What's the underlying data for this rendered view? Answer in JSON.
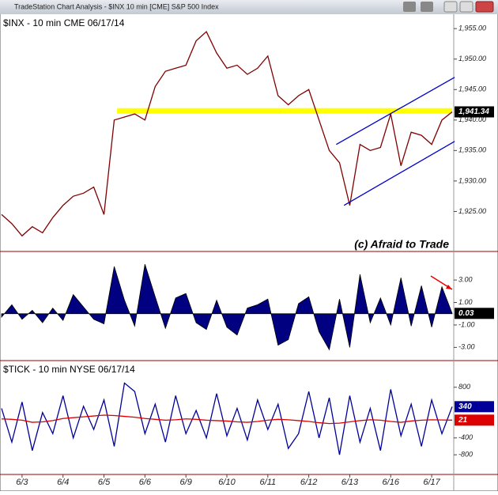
{
  "window": {
    "title": "TradeStation Chart Analysis - $INX 10 min [CME] S&P 500 Index"
  },
  "chart_data": [
    {
      "type": "line",
      "title": "$INX - 10 min  CME  06/17/14",
      "annotation": "(c) Afraid to Trade",
      "xlim": [
        0,
        11
      ],
      "ylim": [
        1918.7,
        1957.1
      ],
      "yticks": [
        {
          "value": 1925,
          "label": "1,925.00"
        },
        {
          "value": 1930,
          "label": "1,930.00"
        },
        {
          "value": 1935,
          "label": "1,935.00"
        },
        {
          "value": 1940,
          "label": "1,940.00"
        },
        {
          "value": 1945,
          "label": "1,945.00"
        },
        {
          "value": 1950,
          "label": "1,950.00"
        },
        {
          "value": 1955,
          "label": "1,955.00"
        }
      ],
      "x": [
        0,
        0.25,
        0.5,
        0.75,
        1,
        1.25,
        1.5,
        1.75,
        2,
        2.25,
        2.5,
        2.75,
        3,
        3.25,
        3.5,
        3.75,
        4,
        4.25,
        4.5,
        4.75,
        5,
        5.25,
        5.5,
        5.75,
        6,
        6.25,
        6.5,
        6.75,
        7,
        7.25,
        7.5,
        7.75,
        8,
        8.25,
        8.5,
        8.75,
        9,
        9.25,
        9.5,
        9.75,
        10,
        10.25,
        10.5,
        10.75,
        11
      ],
      "series": [
        {
          "color": "#800000",
          "show_last_value": true,
          "values": [
            1924.5,
            1923,
            1921,
            1922.5,
            1921.5,
            1924,
            1926,
            1927.5,
            1928,
            1929,
            1924.5,
            1940,
            1940.5,
            1941,
            1940,
            1945.5,
            1948,
            1948.5,
            1949,
            1953,
            1954.5,
            1951,
            1948.5,
            1949,
            1947.5,
            1948.5,
            1950.5,
            1944,
            1942.5,
            1944,
            1945,
            1940,
            1935,
            1933,
            1926,
            1936,
            1935,
            1935.5,
            1941,
            1932.5,
            1938,
            1937.5,
            1936,
            1940,
            1941.34
          ],
          "value_labels": [
            null,
            null,
            null,
            null,
            null,
            null,
            null,
            null,
            null,
            null,
            null,
            null,
            null,
            null,
            null,
            null,
            null,
            null,
            null,
            null,
            null,
            null,
            null,
            null,
            null,
            null,
            null,
            null,
            null,
            null,
            null,
            null,
            null,
            null,
            null,
            null,
            null,
            null,
            null,
            null,
            null,
            null,
            null,
            null,
            "1,941.34"
          ]
        }
      ],
      "hline": {
        "value": 1941.5,
        "from": 2.82,
        "color": "#ffff00"
      },
      "trendlines": [
        {
          "x": [
            8.17,
            11.06
          ],
          "y": [
            1936,
            1947
          ],
          "color": "#0000cc"
        },
        {
          "x": [
            8.36,
            11.06
          ],
          "y": [
            1926,
            1936.5
          ],
          "color": "#0000cc"
        }
      ]
    },
    {
      "type": "area",
      "xlim": [
        0,
        11
      ],
      "ylim": [
        -4.1,
        5.4
      ],
      "yticks": [
        {
          "value": -3,
          "label": "-3.00"
        },
        {
          "value": -1,
          "label": "-1.00"
        },
        {
          "value": 1,
          "label": "1.00"
        },
        {
          "value": 3,
          "label": "3.00"
        }
      ],
      "x": [
        0,
        0.25,
        0.5,
        0.75,
        1,
        1.25,
        1.5,
        1.75,
        2,
        2.25,
        2.5,
        2.75,
        3,
        3.25,
        3.5,
        3.75,
        4,
        4.25,
        4.5,
        4.75,
        5,
        5.25,
        5.5,
        5.75,
        6,
        6.25,
        6.5,
        6.75,
        7,
        7.25,
        7.5,
        7.75,
        8,
        8.25,
        8.5,
        8.75,
        9,
        9.25,
        9.5,
        9.75,
        10,
        10.25,
        10.5,
        10.75,
        11
      ],
      "series": [
        {
          "color": "#000080",
          "show_last_value": true,
          "values": [
            -0.3,
            0.8,
            -0.5,
            0.3,
            -0.8,
            0.5,
            -0.6,
            1.7,
            0.6,
            -0.5,
            -0.9,
            4.2,
            1.2,
            -1.1,
            4.4,
            1.5,
            -1.3,
            1.4,
            1.8,
            -0.8,
            -1.4,
            1.2,
            -1.2,
            -1.9,
            0.5,
            0.8,
            1.3,
            -2.8,
            -2.3,
            0.9,
            1.5,
            -1.6,
            -3.2,
            1.3,
            -3,
            3.5,
            -0.8,
            1.4,
            -1,
            3.2,
            -1.1,
            2.5,
            -1.2,
            2.4,
            0.03
          ]
        }
      ]
    },
    {
      "type": "line",
      "title": "$TICK - 10 min  NYSE  06/17/14",
      "xlim": [
        0,
        11
      ],
      "ylim": [
        -1247,
        1395
      ],
      "yticks": [
        -800,
        -400,
        800
      ],
      "xticks": [
        {
          "value": 0.5,
          "label": "6/3"
        },
        {
          "value": 1.5,
          "label": "6/4"
        },
        {
          "value": 2.5,
          "label": "6/5"
        },
        {
          "value": 3.5,
          "label": "6/6"
        },
        {
          "value": 4.5,
          "label": "6/9"
        },
        {
          "value": 5.5,
          "label": "6/10"
        },
        {
          "value": 6.5,
          "label": "6/11"
        },
        {
          "value": 7.5,
          "label": "6/12"
        },
        {
          "value": 8.5,
          "label": "6/13"
        },
        {
          "value": 9.5,
          "label": "6/16"
        },
        {
          "value": 10.5,
          "label": "6/17"
        }
      ],
      "x": [
        0,
        0.25,
        0.5,
        0.75,
        1,
        1.25,
        1.5,
        1.75,
        2,
        2.25,
        2.5,
        2.75,
        3,
        3.25,
        3.5,
        3.75,
        4,
        4.25,
        4.5,
        4.75,
        5,
        5.25,
        5.5,
        5.75,
        6,
        6.25,
        6.5,
        6.75,
        7,
        7.25,
        7.5,
        7.75,
        8,
        8.25,
        8.5,
        8.75,
        9,
        9.25,
        9.5,
        9.75,
        10,
        10.25,
        10.5,
        10.75,
        11
      ],
      "series": [
        {
          "color": "#000099",
          "show_last_value": true,
          "values": [
            300,
            -500,
            450,
            -700,
            200,
            -300,
            600,
            -400,
            350,
            -200,
            500,
            -600,
            900,
            700,
            -300,
            400,
            -500,
            600,
            -300,
            250,
            -400,
            650,
            -350,
            300,
            -450,
            500,
            -200,
            400,
            -650,
            -300,
            700,
            -400,
            550,
            -800,
            600,
            -500,
            300,
            -700,
            750,
            -350,
            400,
            -600,
            500,
            -300,
            340
          ]
        },
        {
          "color": "#dd0000",
          "show_last_value": true,
          "values": [
            50,
            40,
            20,
            -30,
            -20,
            10,
            60,
            80,
            100,
            120,
            140,
            130,
            110,
            90,
            60,
            40,
            20,
            30,
            50,
            40,
            20,
            10,
            0,
            -20,
            -30,
            -10,
            20,
            40,
            30,
            10,
            -10,
            -40,
            -60,
            -50,
            -20,
            10,
            30,
            20,
            -10,
            -30,
            0,
            20,
            30,
            25,
            21
          ]
        }
      ]
    }
  ]
}
